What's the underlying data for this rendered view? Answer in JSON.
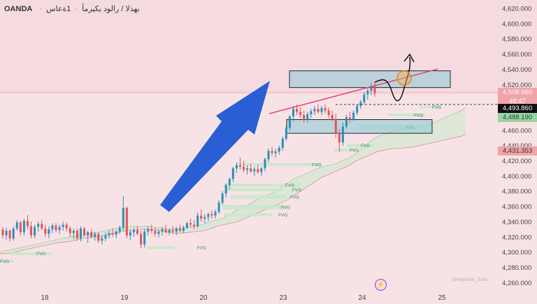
{
  "header": {
    "broker": "OANDA",
    "separator": "·",
    "instrument": "بهذلا / رالود يكيرمأ",
    "timeframe": "1ةعاس"
  },
  "colors": {
    "background": "#f7e3e6",
    "up": "#2f8fb5",
    "down": "#e2555f",
    "cloud": "#d9e6d5",
    "zone_fill": "#8ec8d6",
    "arrow": "#2a5ed4",
    "trendline": "#e8457a"
  },
  "price_badges": {
    "last": "4,508.560",
    "countdown": "48:47",
    "dashed": "4,493.860",
    "green": "4,488.190",
    "lower": "4,431.353"
  },
  "watermark": "@Nephew_Sam_",
  "fvg_label": "FVG",
  "chart_data": {
    "type": "candlestick",
    "title": "",
    "xlabel": "",
    "ylabel": "",
    "ylim": [
      4255,
      4630
    ],
    "y_ticks": [
      "4,620.000",
      "4,600.000",
      "4,580.000",
      "4,560.000",
      "4,540.000",
      "4,520.000",
      "4,500.000",
      "4,480.000",
      "4,460.000",
      "4,440.000",
      "4,420.000",
      "4,400.000",
      "4,380.000",
      "4,360.000",
      "4,340.000",
      "4,320.000",
      "4,300.000",
      "4,280.000",
      "4,260.000"
    ],
    "x_ticks": [
      "18",
      "19",
      "20",
      "23",
      "24",
      "25"
    ],
    "candles": [
      [
        4330,
        4333,
        4318,
        4322
      ],
      [
        4322,
        4332,
        4316,
        4328
      ],
      [
        4328,
        4330,
        4314,
        4318
      ],
      [
        4318,
        4334,
        4315,
        4331
      ],
      [
        4331,
        4342,
        4328,
        4339
      ],
      [
        4339,
        4341,
        4322,
        4326
      ],
      [
        4326,
        4344,
        4322,
        4341
      ],
      [
        4341,
        4349,
        4330,
        4334
      ],
      [
        4334,
        4340,
        4318,
        4322
      ],
      [
        4322,
        4336,
        4318,
        4333
      ],
      [
        4333,
        4340,
        4327,
        4337
      ],
      [
        4337,
        4342,
        4329,
        4331
      ],
      [
        4331,
        4336,
        4320,
        4324
      ],
      [
        4324,
        4334,
        4318,
        4330
      ],
      [
        4330,
        4338,
        4325,
        4335
      ],
      [
        4335,
        4338,
        4326,
        4329
      ],
      [
        4329,
        4336,
        4324,
        4333
      ],
      [
        4333,
        4340,
        4328,
        4336
      ],
      [
        4336,
        4339,
        4327,
        4331
      ],
      [
        4331,
        4334,
        4320,
        4325
      ],
      [
        4325,
        4331,
        4317,
        4328
      ],
      [
        4328,
        4330,
        4315,
        4318
      ],
      [
        4318,
        4334,
        4314,
        4331
      ],
      [
        4331,
        4333,
        4320,
        4322
      ],
      [
        4322,
        4328,
        4312,
        4326
      ],
      [
        4326,
        4330,
        4318,
        4320
      ],
      [
        4320,
        4327,
        4315,
        4324
      ],
      [
        4324,
        4326,
        4312,
        4315
      ],
      [
        4315,
        4322,
        4310,
        4318
      ],
      [
        4318,
        4326,
        4314,
        4322
      ],
      [
        4322,
        4328,
        4318,
        4325
      ],
      [
        4325,
        4331,
        4320,
        4323
      ],
      [
        4323,
        4329,
        4318,
        4327
      ],
      [
        4327,
        4335,
        4324,
        4332
      ],
      [
        4332,
        4374,
        4328,
        4358
      ],
      [
        4358,
        4360,
        4318,
        4322
      ],
      [
        4322,
        4330,
        4316,
        4326
      ],
      [
        4326,
        4332,
        4320,
        4329
      ],
      [
        4329,
        4334,
        4322,
        4324
      ],
      [
        4324,
        4328,
        4305,
        4310
      ],
      [
        4310,
        4330,
        4306,
        4327
      ],
      [
        4327,
        4334,
        4322,
        4330
      ],
      [
        4330,
        4336,
        4325,
        4328
      ],
      [
        4328,
        4332,
        4320,
        4324
      ],
      [
        4324,
        4330,
        4319,
        4327
      ],
      [
        4327,
        4333,
        4322,
        4330
      ],
      [
        4330,
        4336,
        4325,
        4326
      ],
      [
        4326,
        4331,
        4322,
        4329
      ],
      [
        4329,
        4334,
        4324,
        4327
      ],
      [
        4327,
        4333,
        4322,
        4331
      ],
      [
        4331,
        4336,
        4326,
        4328
      ],
      [
        4328,
        4335,
        4325,
        4332
      ],
      [
        4332,
        4340,
        4330,
        4338
      ],
      [
        4338,
        4344,
        4332,
        4336
      ],
      [
        4336,
        4342,
        4330,
        4334
      ],
      [
        4334,
        4352,
        4332,
        4348
      ],
      [
        4348,
        4356,
        4340,
        4344
      ],
      [
        4344,
        4350,
        4338,
        4346
      ],
      [
        4346,
        4352,
        4341,
        4350
      ],
      [
        4350,
        4355,
        4344,
        4348
      ],
      [
        4348,
        4356,
        4344,
        4353
      ],
      [
        4353,
        4368,
        4350,
        4365
      ],
      [
        4365,
        4380,
        4362,
        4377
      ],
      [
        4377,
        4390,
        4372,
        4388
      ],
      [
        4388,
        4398,
        4382,
        4396
      ],
      [
        4396,
        4412,
        4392,
        4410
      ],
      [
        4410,
        4418,
        4404,
        4414
      ],
      [
        4414,
        4424,
        4408,
        4412
      ],
      [
        4412,
        4420,
        4405,
        4408
      ],
      [
        4408,
        4414,
        4402,
        4410
      ],
      [
        4410,
        4416,
        4404,
        4406
      ],
      [
        4406,
        4412,
        4400,
        4409
      ],
      [
        4409,
        4415,
        4403,
        4405
      ],
      [
        4405,
        4412,
        4400,
        4410
      ],
      [
        4410,
        4424,
        4406,
        4422
      ],
      [
        4422,
        4436,
        4418,
        4433
      ],
      [
        4433,
        4438,
        4426,
        4430
      ],
      [
        4430,
        4436,
        4424,
        4432
      ],
      [
        4432,
        4440,
        4428,
        4437
      ],
      [
        4437,
        4452,
        4433,
        4449
      ],
      [
        4449,
        4466,
        4446,
        4463
      ],
      [
        4463,
        4480,
        4460,
        4478
      ],
      [
        4478,
        4492,
        4472,
        4488
      ],
      [
        4488,
        4494,
        4480,
        4484
      ],
      [
        4484,
        4490,
        4476,
        4480
      ],
      [
        4480,
        4486,
        4470,
        4474
      ],
      [
        4474,
        4484,
        4470,
        4481
      ],
      [
        4481,
        4488,
        4476,
        4485
      ],
      [
        4485,
        4492,
        4480,
        4488
      ],
      [
        4488,
        4494,
        4482,
        4484
      ],
      [
        4484,
        4492,
        4480,
        4489
      ],
      [
        4489,
        4494,
        4482,
        4486
      ],
      [
        4486,
        4490,
        4476,
        4480
      ],
      [
        4480,
        4486,
        4472,
        4475
      ],
      [
        4475,
        4482,
        4450,
        4456
      ],
      [
        4456,
        4462,
        4432,
        4444
      ],
      [
        4444,
        4470,
        4440,
        4465
      ],
      [
        4465,
        4480,
        4462,
        4477
      ],
      [
        4477,
        4484,
        4470,
        4474
      ],
      [
        4474,
        4486,
        4472,
        4483
      ],
      [
        4483,
        4494,
        4480,
        4492
      ],
      [
        4492,
        4500,
        4488,
        4497
      ],
      [
        4497,
        4510,
        4494,
        4507
      ],
      [
        4507,
        4516,
        4500,
        4512
      ],
      [
        4512,
        4522,
        4506,
        4518
      ],
      [
        4518,
        4524,
        4504,
        4508
      ]
    ],
    "cloud": {
      "x": [
        0,
        8,
        20,
        40,
        60,
        80,
        100,
        110,
        120,
        130,
        140,
        150,
        160,
        170,
        180,
        190,
        200,
        210,
        220,
        230,
        240,
        250,
        260,
        270,
        280,
        290,
        300,
        310,
        320,
        330,
        340,
        350,
        360,
        370,
        380,
        390,
        400,
        410,
        420,
        430,
        440,
        450,
        460,
        470,
        480,
        490,
        500,
        510,
        520,
        530,
        540,
        550,
        560,
        570,
        580,
        590,
        600,
        610,
        620,
        630,
        640,
        650,
        660,
        666
      ],
      "top": [
        4300,
        4302,
        4304,
        4308,
        4312,
        4316,
        4320,
        4322,
        4323,
        4325,
        4326,
        4328,
        4330,
        4332,
        4332,
        4334,
        4334,
        4334,
        4333,
        4332,
        4330,
        4331,
        4332,
        4333,
        4334,
        4336,
        4340,
        4342,
        4345,
        4350,
        4356,
        4360,
        4365,
        4370,
        4374,
        4378,
        4384,
        4390,
        4396,
        4400,
        4404,
        4408,
        4412,
        4414,
        4416,
        4420,
        4424,
        4430,
        4438,
        4446,
        4452,
        4455,
        4458,
        4460,
        4462,
        4463,
        4464,
        4466,
        4470,
        4474,
        4478,
        4482,
        4486,
        4490
      ],
      "bottom": [
        4298,
        4298,
        4300,
        4304,
        4308,
        4312,
        4314,
        4316,
        4318,
        4320,
        4320,
        4322,
        4324,
        4326,
        4328,
        4328,
        4330,
        4330,
        4330,
        4328,
        4326,
        4325,
        4325,
        4326,
        4327,
        4328,
        4330,
        4334,
        4336,
        4338,
        4340,
        4344,
        4348,
        4352,
        4356,
        4360,
        4364,
        4368,
        4374,
        4380,
        4386,
        4392,
        4398,
        4402,
        4406,
        4410,
        4414,
        4420,
        4424,
        4428,
        4432,
        4434,
        4436,
        4436,
        4437,
        4438,
        4440,
        4442,
        4444,
        4446,
        4448,
        4450,
        4452,
        4455
      ]
    },
    "zones": [
      {
        "p_top": 4538,
        "p_bottom": 4516
      },
      {
        "p_top": 4474,
        "p_bottom": 4456
      }
    ],
    "fvgs": [
      {
        "p_top": 4492,
        "p_bottom": 4489,
        "label": "FVG"
      },
      {
        "p_top": 4482,
        "p_bottom": 4478,
        "label": "FVG"
      },
      {
        "p_top": 4467,
        "p_bottom": 4461,
        "label": "FVG"
      },
      {
        "p_top": 4442,
        "p_bottom": 4438,
        "label": "FVG"
      },
      {
        "p_top": 4436,
        "p_bottom": 4432,
        "label": "FVG"
      },
      {
        "p_top": 4417,
        "p_bottom": 4413,
        "label": "FVG"
      },
      {
        "p_top": 4390,
        "p_bottom": 4386,
        "label": "FVG"
      },
      {
        "p_top": 4384,
        "p_bottom": 4380,
        "label": "FVG"
      },
      {
        "p_top": 4375,
        "p_bottom": 4370,
        "label": "FVG"
      },
      {
        "p_top": 4362,
        "p_bottom": 4356,
        "label": "FVG"
      },
      {
        "p_top": 4351,
        "p_bottom": 4347,
        "label": "FVG"
      },
      {
        "p_top": 4308,
        "p_bottom": 4304,
        "label": "FVG"
      },
      {
        "p_top": 4300,
        "p_bottom": 4296,
        "label": "FVG"
      },
      {
        "p_top": 4290,
        "p_bottom": 4286,
        "label": "FVG"
      }
    ]
  }
}
